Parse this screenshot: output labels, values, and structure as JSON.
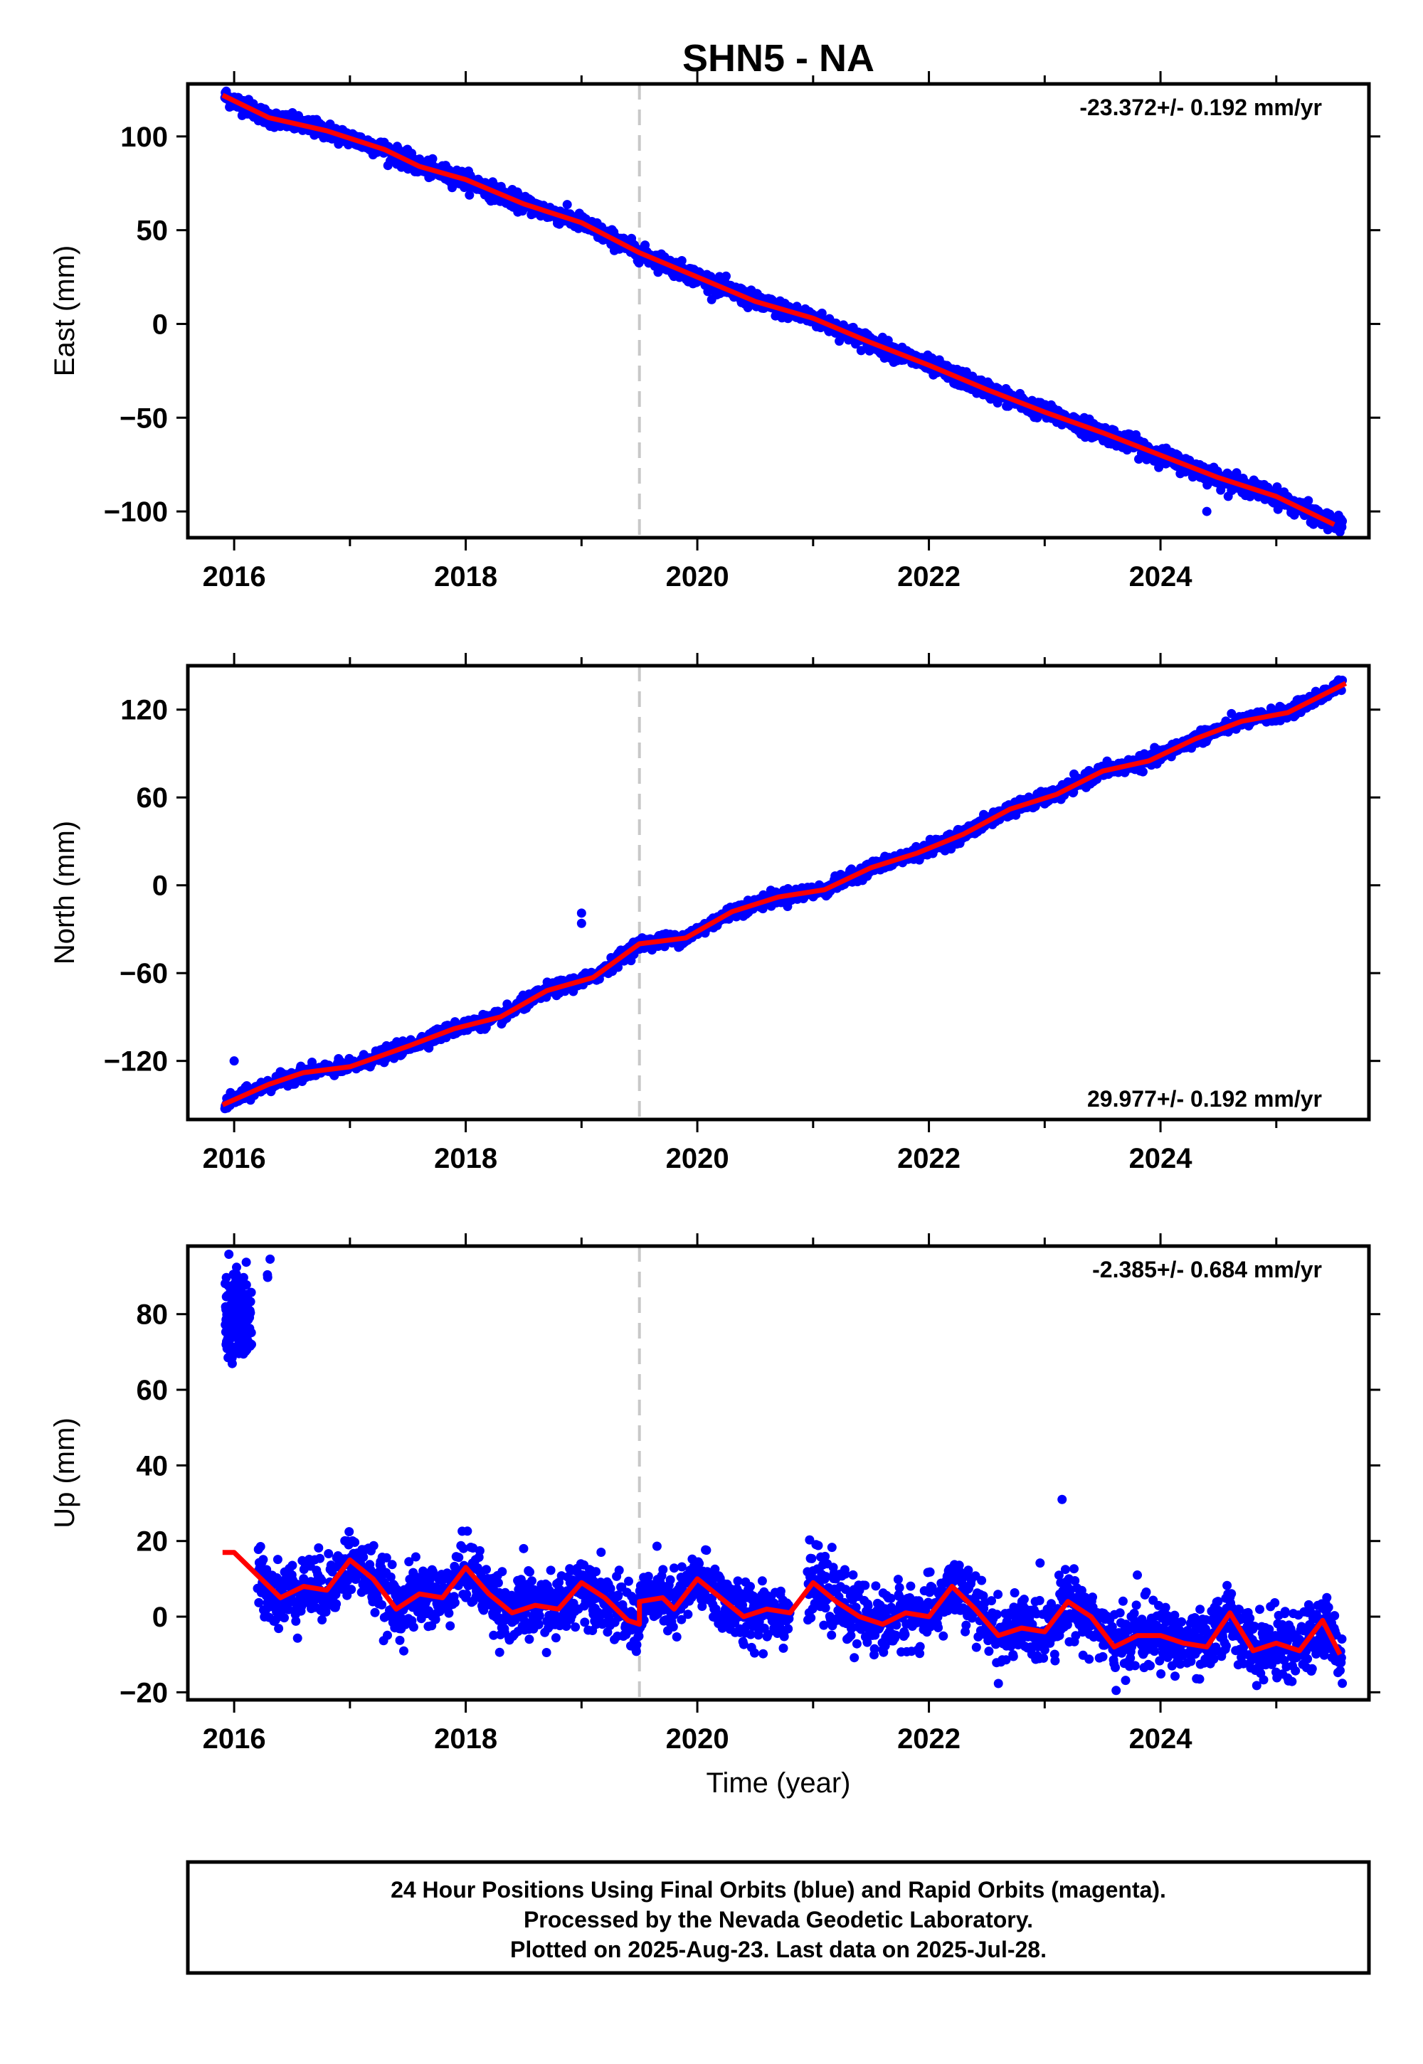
{
  "title": "SHN5 - NA",
  "colors": {
    "points": "#0000ff",
    "fit": "#ff0000",
    "offset_line": "#c8c8c8",
    "frame": "#000000"
  },
  "chart_data": [
    {
      "type": "scatter",
      "panel": "east",
      "ylabel": "East (mm)",
      "xlabel": "",
      "xlim": [
        2015.6,
        2025.8
      ],
      "ylim": [
        -114,
        128
      ],
      "xticks": [
        2016,
        2018,
        2020,
        2022,
        2024
      ],
      "yticks": [
        -100,
        -50,
        0,
        50,
        100
      ],
      "tick_labels": [
        "−100",
        "−50",
        "0",
        "50",
        "100"
      ],
      "rate_label": "-23.372+/- 0.192 mm/yr",
      "rate_position": "top-right",
      "offset_year": 2019.5,
      "series": [
        {
          "role": "fit",
          "x": [
            2015.9,
            2016.3,
            2016.8,
            2017.3,
            2017.6,
            2018.0,
            2018.5,
            2019.0,
            2019.5,
            2020.0,
            2020.5,
            2021.0,
            2021.5,
            2022.0,
            2022.5,
            2023.0,
            2023.5,
            2024.0,
            2024.5,
            2025.0,
            2025.5
          ],
          "y": [
            122,
            110,
            103,
            93,
            84,
            77,
            64,
            54,
            38,
            25,
            12,
            3,
            -10,
            -22,
            -35,
            -47,
            -58,
            -70,
            -82,
            -92,
            -107
          ]
        },
        {
          "role": "points",
          "outliers": [
            {
              "x": 2024.4,
              "y": -100
            }
          ]
        }
      ]
    },
    {
      "type": "scatter",
      "panel": "north",
      "ylabel": "North (mm)",
      "xlabel": "",
      "xlim": [
        2015.6,
        2025.8
      ],
      "ylim": [
        -160,
        150
      ],
      "xticks": [
        2016,
        2018,
        2020,
        2022,
        2024
      ],
      "yticks": [
        -120,
        -60,
        0,
        60,
        120
      ],
      "tick_labels": [
        "−120",
        "−60",
        "0",
        "60",
        "120"
      ],
      "rate_label": "29.977+/- 0.192 mm/yr",
      "rate_position": "bottom-right",
      "offset_year": 2019.5,
      "series": [
        {
          "role": "fit",
          "x": [
            2015.9,
            2016.3,
            2016.6,
            2017.0,
            2017.5,
            2017.9,
            2018.3,
            2018.7,
            2019.1,
            2019.5,
            2019.9,
            2020.3,
            2020.7,
            2021.1,
            2021.5,
            2021.9,
            2022.3,
            2022.7,
            2023.1,
            2023.5,
            2023.9,
            2024.3,
            2024.7,
            2025.1,
            2025.6
          ],
          "y": [
            -150,
            -136,
            -128,
            -124,
            -110,
            -98,
            -90,
            -72,
            -63,
            -40,
            -36,
            -18,
            -8,
            -3,
            12,
            22,
            35,
            52,
            62,
            78,
            85,
            100,
            112,
            118,
            138
          ]
        },
        {
          "role": "points",
          "outliers": [
            {
              "x": 2016.0,
              "y": -120
            },
            {
              "x": 2019.0,
              "y": -19
            },
            {
              "x": 2019.0,
              "y": -26
            }
          ]
        }
      ]
    },
    {
      "type": "scatter",
      "panel": "up",
      "ylabel": "Up (mm)",
      "xlabel": "Time (year)",
      "xlim": [
        2015.6,
        2025.8
      ],
      "ylim": [
        -22,
        98
      ],
      "xticks": [
        2016,
        2018,
        2020,
        2022,
        2024
      ],
      "yticks": [
        -20,
        0,
        20,
        40,
        60,
        80
      ],
      "tick_labels": [
        "−20",
        "0",
        "20",
        "40",
        "60",
        "80"
      ],
      "rate_label": "-2.385+/- 0.684 mm/yr",
      "rate_position": "top-right",
      "offset_year": 2019.5,
      "series": [
        {
          "role": "fit",
          "x": [
            2015.9,
            2016.0,
            2016.2,
            2016.4,
            2016.6,
            2016.8,
            2017.0,
            2017.2,
            2017.4,
            2017.6,
            2017.8,
            2018.0,
            2018.2,
            2018.4,
            2018.6,
            2018.8,
            2019.0,
            2019.2,
            2019.4,
            2019.5,
            2019.5,
            2019.7,
            2019.8,
            2020.0,
            2020.2,
            2020.4,
            2020.6,
            2020.8,
            2021.0,
            2021.2,
            2021.4,
            2021.6,
            2021.8,
            2022.0,
            2022.2,
            2022.4,
            2022.6,
            2022.8,
            2023.0,
            2023.2,
            2023.4,
            2023.6,
            2023.8,
            2024.0,
            2024.2,
            2024.4,
            2024.6,
            2024.8,
            2025.0,
            2025.2,
            2025.4,
            2025.55
          ],
          "y": [
            17,
            17,
            11,
            5,
            8,
            7,
            15,
            10,
            2,
            6,
            5,
            13,
            6,
            1,
            3,
            2,
            9,
            5,
            -1,
            -2,
            4,
            5,
            2,
            10,
            5,
            0,
            2,
            1,
            9,
            4,
            0,
            -2,
            1,
            0,
            8,
            2,
            -5,
            -3,
            -4,
            4,
            0,
            -8,
            -5,
            -5,
            -7,
            -8,
            1,
            -9,
            -7,
            -9,
            -1,
            -10
          ]
        },
        {
          "role": "points",
          "clusters": [
            {
              "x0": 2015.92,
              "x1": 2016.15,
              "center": 79,
              "spread": 6,
              "n": 140
            },
            {
              "x0": 2016.28,
              "x1": 2016.32,
              "center": 92,
              "spread": 1.5,
              "n": 3
            }
          ],
          "outliers": [
            {
              "x": 2023.15,
              "y": 31
            },
            {
              "x": 2023.8,
              "y": 11
            },
            {
              "x": 2018.5,
              "y": 18
            }
          ]
        }
      ]
    }
  ],
  "footer": {
    "line1": "24 Hour Positions Using Final Orbits (blue) and Rapid Orbits (magenta).",
    "line2": "Processed by the Nevada Geodetic Laboratory.",
    "line3": "Plotted on 2025-Aug-23. Last data on 2025-Jul-28."
  }
}
